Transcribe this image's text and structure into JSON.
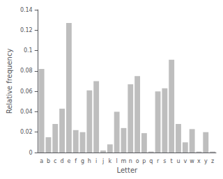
{
  "chart_data": {
    "type": "bar",
    "categories": [
      "a",
      "b",
      "c",
      "d",
      "e",
      "f",
      "g",
      "h",
      "i",
      "j",
      "k",
      "l",
      "m",
      "n",
      "o",
      "p",
      "q",
      "r",
      "s",
      "t",
      "u",
      "v",
      "w",
      "x",
      "y",
      "z"
    ],
    "values": [
      0.082,
      0.015,
      0.028,
      0.043,
      0.127,
      0.022,
      0.02,
      0.061,
      0.07,
      0.002,
      0.008,
      0.04,
      0.024,
      0.067,
      0.075,
      0.019,
      0.001,
      0.06,
      0.063,
      0.091,
      0.028,
      0.01,
      0.023,
      0.001,
      0.02,
      0.001
    ],
    "color": "#bebebe",
    "xlabel": "Letter",
    "ylabel": "Relative frequency",
    "ylim": [
      0,
      0.14
    ],
    "yticks": [
      0,
      0.02,
      0.04,
      0.06,
      0.08,
      0.1,
      0.12,
      0.14
    ],
    "grid": false
  }
}
